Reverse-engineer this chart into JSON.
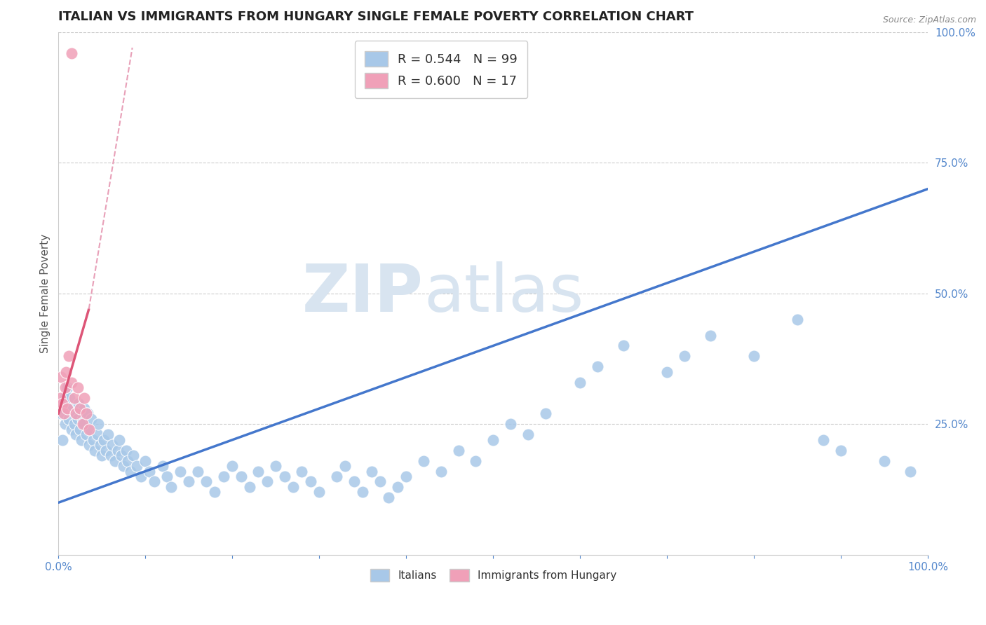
{
  "title": "ITALIAN VS IMMIGRANTS FROM HUNGARY SINGLE FEMALE POVERTY CORRELATION CHART",
  "source": "Source: ZipAtlas.com",
  "ylabel": "Single Female Poverty",
  "legend_italians": "Italians",
  "legend_hungary": "Immigrants from Hungary",
  "r_italians": 0.544,
  "n_italians": 99,
  "r_hungary": 0.6,
  "n_hungary": 17,
  "watermark_zip": "ZIP",
  "watermark_atlas": "atlas",
  "blue_color": "#a8c8e8",
  "pink_color": "#f0a0b8",
  "blue_line_color": "#4477cc",
  "pink_line_color": "#dd5577",
  "pink_dash_color": "#e8a0b8",
  "title_color": "#222222",
  "axis_label_color": "#5588cc",
  "watermark_color": "#d8e4f0",
  "background_color": "#ffffff",
  "grid_color": "#cccccc",
  "xlim": [
    0,
    100
  ],
  "ylim": [
    0,
    100
  ],
  "blue_line_x0": 0,
  "blue_line_y0": 10,
  "blue_line_x1": 100,
  "blue_line_y1": 70,
  "pink_solid_x0": 0,
  "pink_solid_y0": 27,
  "pink_solid_x1": 3.5,
  "pink_solid_y1": 47,
  "pink_dash_x0": 3.5,
  "pink_dash_y0": 47,
  "pink_dash_x1": 8.5,
  "pink_dash_y1": 97,
  "blue_x": [
    0.3,
    0.5,
    0.7,
    0.8,
    1.0,
    1.0,
    1.2,
    1.3,
    1.5,
    1.6,
    1.8,
    2.0,
    2.0,
    2.2,
    2.3,
    2.5,
    2.6,
    2.8,
    3.0,
    3.0,
    3.2,
    3.4,
    3.5,
    3.7,
    3.8,
    4.0,
    4.2,
    4.5,
    4.6,
    4.8,
    5.0,
    5.2,
    5.5,
    5.7,
    6.0,
    6.2,
    6.5,
    6.8,
    7.0,
    7.2,
    7.5,
    7.8,
    8.0,
    8.3,
    8.6,
    9.0,
    9.5,
    10.0,
    10.5,
    11.0,
    12.0,
    12.5,
    13.0,
    14.0,
    15.0,
    16.0,
    17.0,
    18.0,
    19.0,
    20.0,
    21.0,
    22.0,
    23.0,
    24.0,
    25.0,
    26.0,
    27.0,
    28.0,
    29.0,
    30.0,
    32.0,
    33.0,
    34.0,
    35.0,
    36.0,
    37.0,
    38.0,
    39.0,
    40.0,
    42.0,
    44.0,
    46.0,
    48.0,
    50.0,
    52.0,
    54.0,
    56.0,
    60.0,
    62.0,
    65.0,
    70.0,
    72.0,
    75.0,
    80.0,
    85.0,
    88.0,
    90.0,
    95.0,
    98.0
  ],
  "blue_y": [
    27,
    22,
    30,
    25,
    28,
    32,
    26,
    30,
    24,
    28,
    25,
    27,
    23,
    26,
    29,
    24,
    22,
    26,
    25,
    28,
    23,
    27,
    21,
    24,
    26,
    22,
    20,
    23,
    25,
    21,
    19,
    22,
    20,
    23,
    19,
    21,
    18,
    20,
    22,
    19,
    17,
    20,
    18,
    16,
    19,
    17,
    15,
    18,
    16,
    14,
    17,
    15,
    13,
    16,
    14,
    16,
    14,
    12,
    15,
    17,
    15,
    13,
    16,
    14,
    17,
    15,
    13,
    16,
    14,
    12,
    15,
    17,
    14,
    12,
    16,
    14,
    11,
    13,
    15,
    18,
    16,
    20,
    18,
    22,
    25,
    23,
    27,
    33,
    36,
    40,
    35,
    38,
    42,
    38,
    45,
    22,
    20,
    18,
    16
  ],
  "pink_x": [
    0.2,
    0.3,
    0.5,
    0.6,
    0.8,
    0.9,
    1.0,
    1.2,
    1.5,
    1.8,
    2.0,
    2.2,
    2.5,
    2.8,
    3.0,
    3.2,
    3.5
  ],
  "pink_y": [
    30,
    34,
    29,
    27,
    32,
    35,
    28,
    38,
    33,
    30,
    27,
    32,
    28,
    25,
    30,
    27,
    24
  ],
  "pink_outlier_x": [
    1.5
  ],
  "pink_outlier_y": [
    96
  ],
  "title_fontsize": 13,
  "axis_fontsize": 11,
  "legend_fontsize": 13
}
